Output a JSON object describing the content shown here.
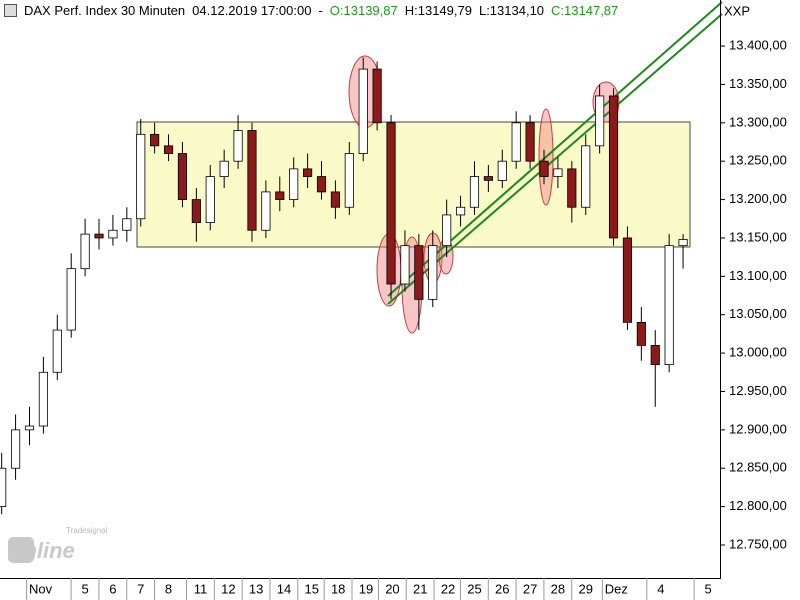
{
  "header": {
    "title": "DAX Perf. Index 30 Minuten",
    "timestamp": "04.12.2019 17:00:00",
    "separator": "-",
    "open": "O:13139,87",
    "high": "H:13149,79",
    "low": "L:13134,10",
    "close": "C:13147,87",
    "symbol": "XXP"
  },
  "logo": {
    "brand": "Tradesignal",
    "name": "online"
  },
  "chart_data": {
    "type": "candlestick",
    "title": "DAX Perf. Index 30 Minuten",
    "x": [
      -2,
      -1.5,
      -1,
      -0.5,
      0,
      0.5,
      1,
      1.5,
      2,
      2.5,
      3,
      3.5,
      4,
      4.5,
      5,
      5.5,
      6,
      6.5,
      7,
      7.5,
      8,
      8.5,
      9,
      9.5,
      10,
      10.5,
      11,
      11.5,
      12,
      12.5,
      13,
      13.5,
      14,
      14.5,
      15,
      15.5,
      16,
      16.5,
      17,
      17.5,
      18,
      18.5,
      19,
      19.5,
      20,
      20.5,
      21,
      21.5,
      22,
      22.5
    ],
    "open": [
      12800,
      12850,
      12900,
      12905,
      12975,
      13030,
      13110,
      13155,
      13150,
      13160,
      13175,
      13285,
      13270,
      13260,
      13200,
      13170,
      13230,
      13250,
      13290,
      13160,
      13210,
      13200,
      13240,
      13230,
      13210,
      13190,
      13260,
      13370,
      13300,
      13090,
      13140,
      13070,
      13140,
      13180,
      13190,
      13230,
      13225,
      13250,
      13300,
      13250,
      13230,
      13240,
      13190,
      13270,
      13335,
      13150,
      13040,
      13010,
      12985,
      13140
    ],
    "high": [
      12870,
      12920,
      12930,
      12995,
      13050,
      13130,
      13175,
      13175,
      13180,
      13190,
      13305,
      13300,
      13285,
      13275,
      13215,
      13245,
      13265,
      13310,
      13300,
      13225,
      13230,
      13255,
      13260,
      13250,
      13225,
      13275,
      13385,
      13380,
      13310,
      13160,
      13155,
      13160,
      13200,
      13205,
      13250,
      13245,
      13265,
      13315,
      13310,
      13265,
      13255,
      13250,
      13285,
      13350,
      13345,
      13165,
      13060,
      13030,
      13155,
      13155
    ],
    "low": [
      12790,
      12835,
      12880,
      12895,
      12965,
      13020,
      13100,
      13135,
      13140,
      13145,
      13165,
      13260,
      13250,
      13190,
      13145,
      13160,
      13215,
      13240,
      13145,
      13150,
      13185,
      13190,
      13215,
      13200,
      13175,
      13180,
      13250,
      13290,
      13070,
      13080,
      13030,
      13060,
      13125,
      13165,
      13180,
      13210,
      13215,
      13240,
      13240,
      13220,
      13215,
      13170,
      13180,
      13260,
      13140,
      13030,
      12990,
      12930,
      12975,
      13110
    ],
    "close": [
      12850,
      12900,
      12905,
      12975,
      13030,
      13110,
      13155,
      13150,
      13160,
      13175,
      13285,
      13270,
      13260,
      13200,
      13170,
      13230,
      13250,
      13290,
      13160,
      13210,
      13200,
      13240,
      13230,
      13210,
      13190,
      13260,
      13370,
      13300,
      13090,
      13140,
      13070,
      13140,
      13180,
      13190,
      13230,
      13225,
      13250,
      13300,
      13250,
      13230,
      13240,
      13190,
      13270,
      13335,
      13150,
      13040,
      13010,
      12985,
      13140,
      13148
    ],
    "up_color": "#ffffff",
    "down_color": "#8b1a1a",
    "wick_color": "#000000",
    "xlim": [
      -2.06,
      23.9
    ],
    "xticks": [
      {
        "value": -0.6,
        "label": "Nov"
      },
      {
        "value": 1,
        "label": "5"
      },
      {
        "value": 2,
        "label": "6"
      },
      {
        "value": 3,
        "label": "7"
      },
      {
        "value": 4,
        "label": "8"
      },
      {
        "value": 5.15,
        "label": "11"
      },
      {
        "value": 6.15,
        "label": "12"
      },
      {
        "value": 7.15,
        "label": "13"
      },
      {
        "value": 8.15,
        "label": "14"
      },
      {
        "value": 9.15,
        "label": "15"
      },
      {
        "value": 10.1,
        "label": "18"
      },
      {
        "value": 11.1,
        "label": "19"
      },
      {
        "value": 12.05,
        "label": "20"
      },
      {
        "value": 13.05,
        "label": "21"
      },
      {
        "value": 14.05,
        "label": "22"
      },
      {
        "value": 15,
        "label": "25"
      },
      {
        "value": 16,
        "label": "26"
      },
      {
        "value": 17,
        "label": "27"
      },
      {
        "value": 18,
        "label": "28"
      },
      {
        "value": 19,
        "label": "29"
      },
      {
        "value": 20.1,
        "label": "Dez"
      },
      {
        "value": 21.7,
        "label": "4"
      },
      {
        "value": 23.4,
        "label": "5"
      }
    ],
    "ylim": [
      12707,
      13460
    ],
    "yticks": [
      {
        "value": 12750,
        "label": "12.750,00"
      },
      {
        "value": 12800,
        "label": "12.800,00"
      },
      {
        "value": 12850,
        "label": "12.850,00"
      },
      {
        "value": 12900,
        "label": "12.900,00"
      },
      {
        "value": 12950,
        "label": "12.950,00"
      },
      {
        "value": 13000,
        "label": "13.000,00"
      },
      {
        "value": 13050,
        "label": "13.050,00"
      },
      {
        "value": 13100,
        "label": "13.100,00"
      },
      {
        "value": 13150,
        "label": "13.150,00"
      },
      {
        "value": 13200,
        "label": "13.200,00"
      },
      {
        "value": 13250,
        "label": "13.250,00"
      },
      {
        "value": 13300,
        "label": "13.300,00"
      },
      {
        "value": 13350,
        "label": "13.350,00"
      },
      {
        "value": 13400,
        "label": "13.400,00"
      }
    ],
    "grid": false
  }
}
